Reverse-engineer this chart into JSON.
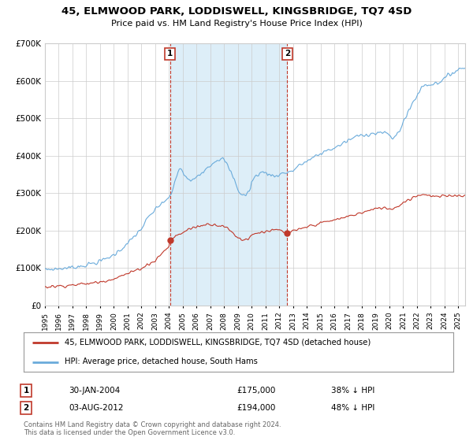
{
  "title": "45, ELMWOOD PARK, LODDISWELL, KINGSBRIDGE, TQ7 4SD",
  "subtitle": "Price paid vs. HM Land Registry's House Price Index (HPI)",
  "ylim": [
    0,
    700000
  ],
  "yticks": [
    0,
    100000,
    200000,
    300000,
    400000,
    500000,
    600000,
    700000
  ],
  "ytick_labels": [
    "£0",
    "£100K",
    "£200K",
    "£300K",
    "£400K",
    "£500K",
    "£600K",
    "£700K"
  ],
  "hpi_color": "#6aabdb",
  "hpi_fill_color": "#ddeef8",
  "price_color": "#c0392b",
  "marker1_x": 2004.08,
  "marker1_y": 175000,
  "marker2_x": 2012.59,
  "marker2_y": 194000,
  "legend_line1": "45, ELMWOOD PARK, LODDISWELL, KINGSBRIDGE, TQ7 4SD (detached house)",
  "legend_line2": "HPI: Average price, detached house, South Hams",
  "annotation1_date": "30-JAN-2004",
  "annotation1_price": "£175,000",
  "annotation1_hpi": "38% ↓ HPI",
  "annotation2_date": "03-AUG-2012",
  "annotation2_price": "£194,000",
  "annotation2_hpi": "48% ↓ HPI",
  "footer": "Contains HM Land Registry data © Crown copyright and database right 2024.\nThis data is licensed under the Open Government Licence v3.0.",
  "bg_color": "#ffffff",
  "grid_color": "#cccccc",
  "xmin": 1995,
  "xmax": 2025.5
}
